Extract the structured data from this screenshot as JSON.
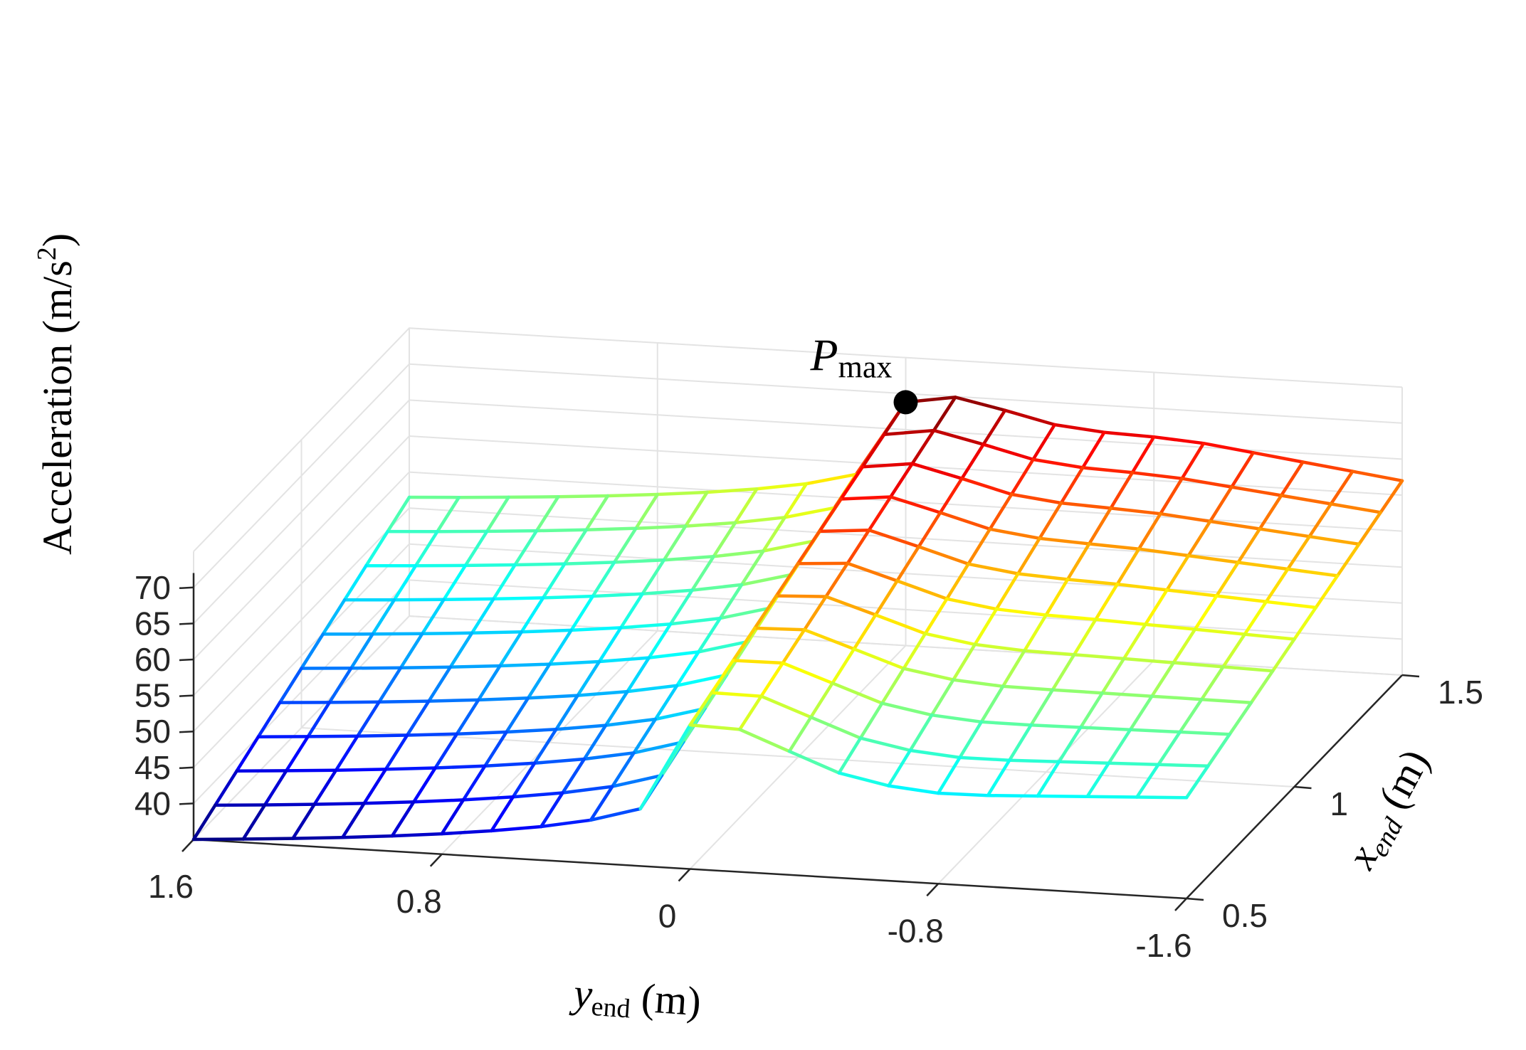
{
  "chart_data": {
    "type": "surface-mesh",
    "title": "",
    "zlabel": {
      "text": "Acceleration (m/s",
      "sup": "2",
      "close": ")"
    },
    "xlabel": {
      "main": "y",
      "sub": "end",
      "unit": " (m)"
    },
    "ylabel": {
      "main": "x",
      "sub": "end",
      "unit": " (m)"
    },
    "y_end_ticks": [
      "1.6",
      "0.8",
      "0",
      "-0.8",
      "-1.6"
    ],
    "x_end_ticks": [
      "0.5",
      "1",
      "1.5"
    ],
    "z_ticks": [
      "40",
      "45",
      "50",
      "55",
      "60",
      "65",
      "70"
    ],
    "y_end_range": [
      1.6,
      -1.6
    ],
    "x_end_range": [
      0.5,
      1.5
    ],
    "z_range": [
      35,
      75
    ],
    "grid": "on",
    "colormap": "jet",
    "annotation": {
      "label_main": "P",
      "label_sub": "max",
      "y_end": 0,
      "x_end": 1.5,
      "z": 68.8
    },
    "surface_description": "acceleration over end-point grid; peaks near y_end = 0 at x_end = 1.5, lowest at y_end = 1.6, x_end = 0.5",
    "surface_samples": [
      {
        "y_end": 1.6,
        "x_end": 0.5,
        "z": 35
      },
      {
        "y_end": 1.6,
        "x_end": 1.5,
        "z": 52
      },
      {
        "y_end": 0,
        "x_end": 0.5,
        "z": 55
      },
      {
        "y_end": 0,
        "x_end": 1.5,
        "z": 68.8
      },
      {
        "y_end": -0.8,
        "x_end": 0.5,
        "z": 48
      },
      {
        "y_end": -1.6,
        "x_end": 0.5,
        "z": 49
      },
      {
        "y_end": -1.6,
        "x_end": 1.5,
        "z": 62
      }
    ]
  }
}
